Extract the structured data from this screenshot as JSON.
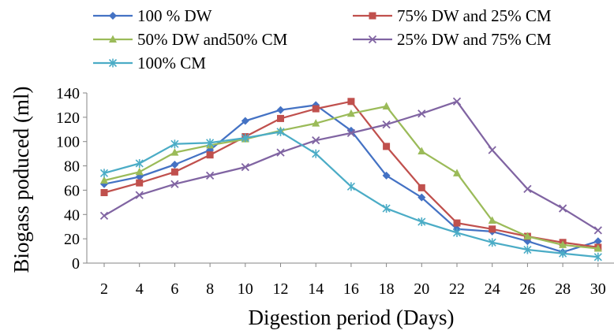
{
  "chart_data": {
    "type": "line",
    "title": "",
    "xlabel": "Digestion period (Days)",
    "ylabel": "Biogass poduced (ml)",
    "x": [
      2,
      4,
      6,
      8,
      10,
      12,
      14,
      16,
      18,
      20,
      22,
      24,
      26,
      28,
      30
    ],
    "ylim": [
      0,
      140
    ],
    "yticks": [
      0,
      20,
      40,
      60,
      80,
      100,
      120,
      140
    ],
    "grid": false,
    "legend_position": "top",
    "series": [
      {
        "name": "100 % DW",
        "color": "#4472C4",
        "marker": "diamond",
        "values": [
          65,
          71,
          81,
          93,
          117,
          126,
          130,
          109,
          72,
          54,
          28,
          26,
          18,
          9,
          18
        ]
      },
      {
        "name": "75% DW and 25% CM",
        "color": "#C0504D",
        "marker": "square",
        "values": [
          58,
          66,
          75,
          89,
          104,
          119,
          127,
          133,
          96,
          62,
          33,
          28,
          22,
          17,
          13
        ]
      },
      {
        "name": "50% DW and50% CM",
        "color": "#9BBB59",
        "marker": "triangle",
        "values": [
          68,
          75,
          91,
          97,
          102,
          109,
          115,
          123,
          129,
          92,
          74,
          35,
          22,
          15,
          12
        ]
      },
      {
        "name": "25% DW and 75% CM",
        "color": "#8064A2",
        "marker": "x",
        "values": [
          39,
          56,
          65,
          72,
          79,
          91,
          101,
          107,
          114,
          123,
          133,
          93,
          61,
          45,
          27
        ]
      },
      {
        "name": "100% CM",
        "color": "#4BACC6",
        "marker": "star",
        "values": [
          74,
          82,
          98,
          99,
          103,
          108,
          90,
          63,
          45,
          34,
          25,
          17,
          11,
          8,
          5
        ]
      }
    ]
  }
}
